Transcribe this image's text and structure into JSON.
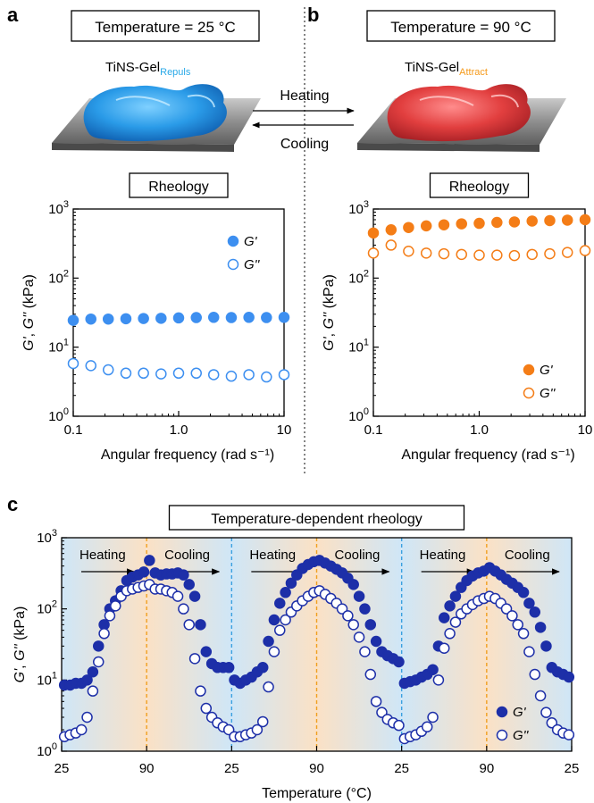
{
  "panels": {
    "a": "a",
    "b": "b",
    "c": "c"
  },
  "top": {
    "left_temp_box": "Temperature = 25 °C",
    "right_temp_box": "Temperature = 90 °C",
    "left_gel": {
      "name": "TiNS-Gel",
      "subscript": "Repuls",
      "subscript_color": "#29a9e8"
    },
    "right_gel": {
      "name": "TiNS-Gel",
      "subscript": "Attract",
      "subscript_color": "#f59a1b"
    },
    "heating_label": "Heating",
    "cooling_label": "Cooling"
  },
  "colors": {
    "blue": "#3d8ff0",
    "orange": "#f47d17",
    "navy": "#1d2fa8",
    "heat_band": "#fbe1c5",
    "cool_band": "#cfe6f7"
  },
  "chart_data": [
    {
      "type": "scatter",
      "panel": "a",
      "title": "Rheology",
      "xlabel": "Angular frequency (rad s⁻¹)",
      "ylabel": "G', G'' (kPa)",
      "xscale": "log",
      "yscale": "log",
      "xlim": [
        0.1,
        10
      ],
      "ylim": [
        1,
        1000
      ],
      "x_ticks": [
        "0.1",
        "1.0",
        "10"
      ],
      "y_ticks": [
        "10^0",
        "10^1",
        "10^2",
        "10^3"
      ],
      "legend_position": "upper-right",
      "x": [
        0.1,
        0.147,
        0.215,
        0.316,
        0.464,
        0.681,
        1.0,
        1.47,
        2.15,
        3.16,
        4.64,
        6.81,
        10.0
      ],
      "series": [
        {
          "name": "G'",
          "marker": "filled",
          "color": "#3d8ff0",
          "values": [
            24.5,
            25.5,
            25.5,
            25.8,
            26.0,
            26.2,
            26.5,
            26.8,
            27.0,
            26.8,
            27.0,
            26.8,
            27.0
          ]
        },
        {
          "name": "G''",
          "marker": "open",
          "color": "#3d8ff0",
          "values": [
            5.8,
            5.4,
            4.7,
            4.2,
            4.2,
            4.1,
            4.2,
            4.2,
            4.0,
            3.8,
            4.0,
            3.7,
            4.0
          ]
        }
      ]
    },
    {
      "type": "scatter",
      "panel": "b",
      "title": "Rheology",
      "xlabel": "Angular frequency (rad s⁻¹)",
      "ylabel": "G', G'' (kPa)",
      "xscale": "log",
      "yscale": "log",
      "xlim": [
        0.1,
        10
      ],
      "ylim": [
        1,
        1000
      ],
      "x_ticks": [
        "0.1",
        "1.0",
        "10"
      ],
      "y_ticks": [
        "10^0",
        "10^1",
        "10^2",
        "10^3"
      ],
      "legend_position": "lower-right",
      "x": [
        0.1,
        0.147,
        0.215,
        0.316,
        0.464,
        0.681,
        1.0,
        1.47,
        2.15,
        3.16,
        4.64,
        6.81,
        10.0
      ],
      "series": [
        {
          "name": "G'",
          "marker": "filled",
          "color": "#f47d17",
          "values": [
            450,
            500,
            540,
            570,
            590,
            610,
            620,
            640,
            650,
            670,
            680,
            690,
            700
          ]
        },
        {
          "name": "G''",
          "marker": "open",
          "color": "#f47d17",
          "values": [
            230,
            300,
            245,
            230,
            225,
            220,
            215,
            215,
            212,
            220,
            225,
            235,
            250
          ]
        }
      ]
    },
    {
      "type": "scatter",
      "panel": "c",
      "title": "Temperature-dependent rheology",
      "xlabel": "Temperature (°C)",
      "ylabel": "G', G'' (kPa)",
      "yscale": "log",
      "ylim": [
        1,
        1000
      ],
      "x_ticks": [
        "25",
        "90",
        "25",
        "90",
        "25",
        "90",
        "25"
      ],
      "y_ticks": [
        "10^0",
        "10^1",
        "10^2",
        "10^3"
      ],
      "legend_position": "lower-right",
      "segments": [
        {
          "label": "Heating",
          "shade": "heating"
        },
        {
          "label": "Cooling",
          "shade": "cooling"
        },
        {
          "label": "Heating",
          "shade": "heating"
        },
        {
          "label": "Cooling",
          "shade": "cooling"
        },
        {
          "label": "Heating",
          "shade": "heating"
        },
        {
          "label": "Cooling",
          "shade": "cooling"
        }
      ],
      "points_per_segment": 15,
      "series": [
        {
          "name": "G'",
          "marker": "filled",
          "color": "#1d2fa8",
          "cycles": [
            {
              "heating": [
                8.5,
                8.5,
                9,
                9,
                10,
                13,
                30,
                60,
                100,
                130,
                180,
                250,
                280,
                300,
                330
              ],
              "cooling": [
                480,
                320,
                300,
                310,
                310,
                320,
                300,
                220,
                150,
                60,
                25,
                17,
                15,
                15,
                15
              ]
            },
            {
              "heating": [
                10,
                9,
                10,
                11,
                13,
                15,
                35,
                70,
                120,
                170,
                230,
                300,
                370,
                420,
                460
              ],
              "cooling": [
                480,
                440,
                400,
                360,
                320,
                270,
                220,
                150,
                100,
                60,
                35,
                25,
                22,
                20,
                18
              ]
            },
            {
              "heating": [
                9,
                9.5,
                10,
                11,
                12,
                14,
                30,
                75,
                110,
                150,
                200,
                250,
                290,
                320,
                340
              ],
              "cooling": [
                380,
                340,
                300,
                260,
                230,
                200,
                170,
                120,
                90,
                55,
                30,
                15,
                13,
                12,
                11
              ]
            }
          ]
        },
        {
          "name": "G''",
          "marker": "open",
          "color": "#1d2fa8",
          "cycles": [
            {
              "heating": [
                1.6,
                1.7,
                1.8,
                2,
                3,
                7,
                18,
                45,
                80,
                110,
                150,
                180,
                190,
                200,
                210
              ],
              "cooling": [
                220,
                190,
                190,
                180,
                170,
                150,
                100,
                60,
                20,
                7,
                4,
                3,
                2.5,
                2.2,
                2
              ]
            },
            {
              "heating": [
                1.6,
                1.6,
                1.7,
                1.8,
                2,
                2.6,
                8,
                25,
                50,
                70,
                90,
                110,
                130,
                150,
                170
              ],
              "cooling": [
                180,
                160,
                140,
                120,
                100,
                80,
                60,
                40,
                25,
                12,
                5,
                3.5,
                2.8,
                2.5,
                2.3
              ]
            },
            {
              "heating": [
                1.5,
                1.6,
                1.7,
                1.9,
                2.2,
                3,
                10,
                28,
                45,
                65,
                85,
                100,
                115,
                130,
                140
              ],
              "cooling": [
                150,
                140,
                120,
                100,
                80,
                60,
                45,
                25,
                12,
                6,
                3.5,
                2.5,
                2,
                1.8,
                1.7
              ]
            }
          ]
        }
      ]
    }
  ]
}
